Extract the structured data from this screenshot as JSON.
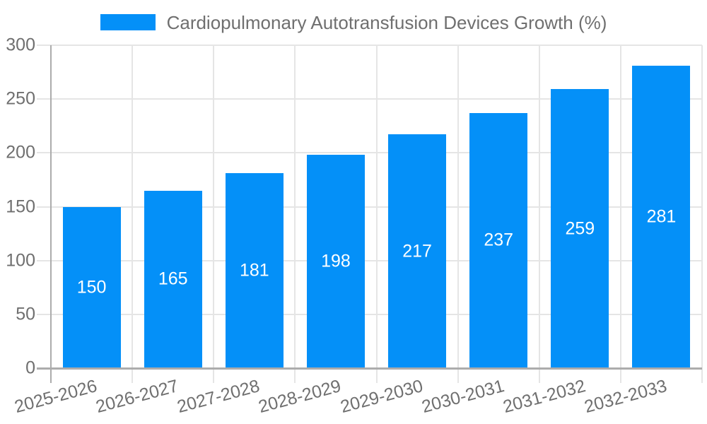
{
  "chart_data": {
    "type": "bar",
    "title": "Cardiopulmonary Autotransfusion Devices Growth (%)",
    "categories": [
      "2025-2026",
      "2026-2027",
      "2027-2028",
      "2028-2029",
      "2029-2030",
      "2030-2031",
      "2031-2032",
      "2032-2033"
    ],
    "values": [
      150,
      165,
      181,
      198,
      217,
      237,
      259,
      281
    ],
    "yticks": [
      0,
      50,
      100,
      150,
      200,
      250,
      300
    ],
    "ylim": [
      0,
      300
    ],
    "xlabel": "",
    "ylabel": "",
    "grid": true,
    "legend_position": "top",
    "x_label_rotation_deg": -15,
    "value_labels": "inside-center",
    "colors": {
      "bar": "#0490F8",
      "grid": "#E5E5E5",
      "axis": "#ACACAC",
      "text": "#6F6F6F",
      "value_label": "#FFFFFF",
      "background": "#FFFFFF"
    }
  }
}
